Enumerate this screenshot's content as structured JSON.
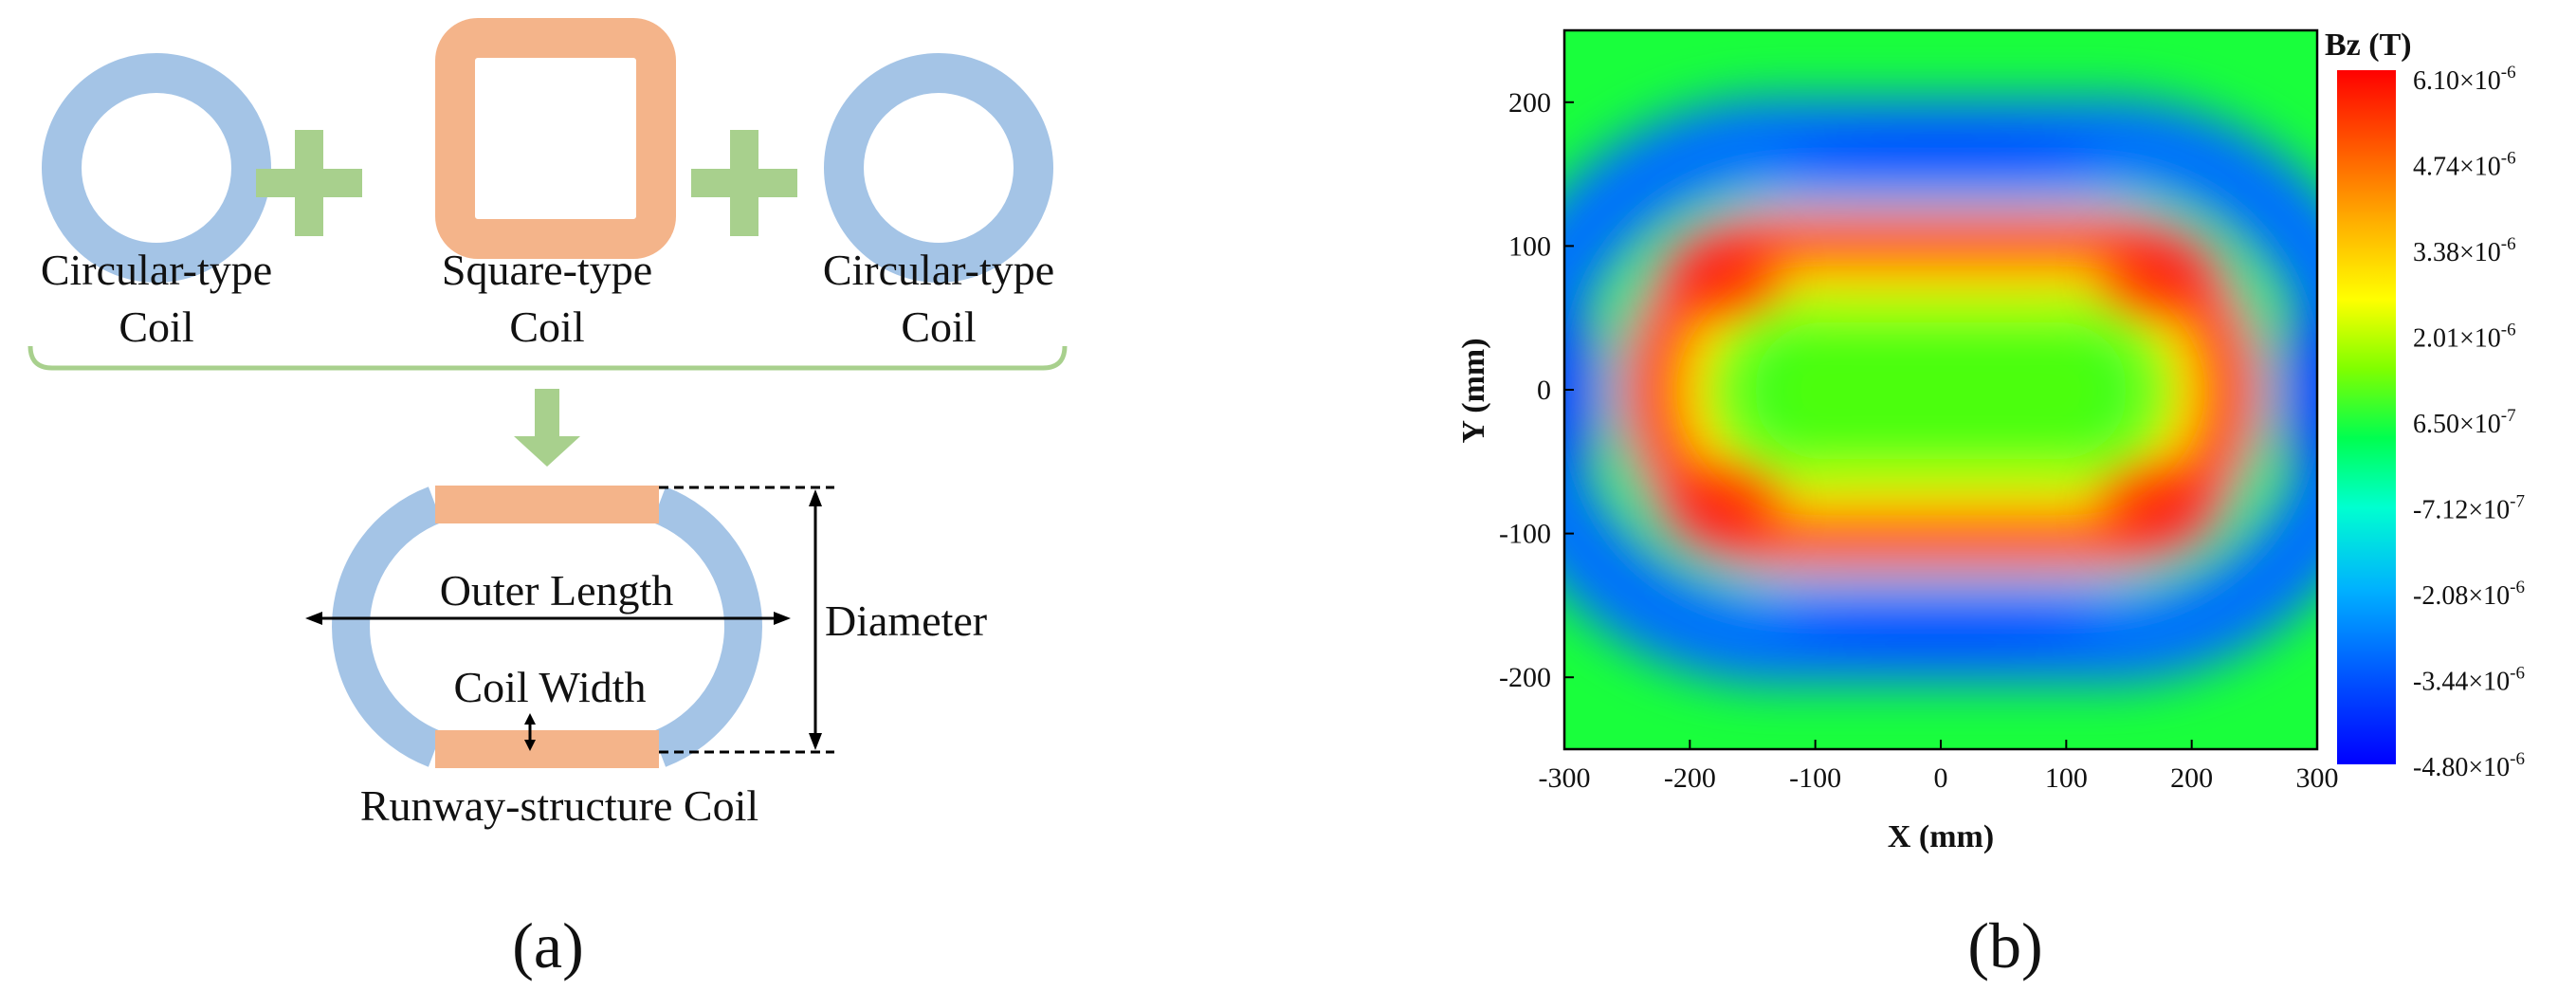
{
  "panel_a": {
    "caption": "(a)",
    "plus_symbol": "+",
    "coils": [
      {
        "line1": "Circular-type",
        "line2": "Coil",
        "color": "#A4C4E6"
      },
      {
        "line1": "Square-type",
        "line2": "Coil",
        "color": "#F4B48A"
      },
      {
        "line1": "Circular-type",
        "line2": "Coil",
        "color": "#A4C4E6"
      }
    ],
    "connector_color": "#A8D08D",
    "result_label": "Runway-structure Coil",
    "dimensions": {
      "outer_length": "Outer Length",
      "coil_width": "Coil Width",
      "diameter": "Diameter"
    }
  },
  "panel_b": {
    "caption": "(b)",
    "chart_data": {
      "type": "heatmap",
      "title": "",
      "xlabel": "X (mm)",
      "ylabel": "Y (mm)",
      "xlim": [
        -300,
        300
      ],
      "ylim": [
        -250,
        250
      ],
      "xticks": [
        -300,
        -200,
        -100,
        0,
        100,
        200,
        300
      ],
      "yticks": [
        -200,
        -100,
        0,
        100,
        200
      ],
      "colorbar": {
        "title": "Bz (T)",
        "min": -4.8e-06,
        "max": 6.1e-06,
        "tick_labels": [
          "6.10×10",
          "4.74×10",
          "3.38×10",
          "2.01×10",
          "6.50×10",
          "-7.12×10",
          "-2.08×10",
          "-3.44×10",
          "-4.80×10"
        ],
        "tick_exponents": [
          "-6",
          "-6",
          "-6",
          "-6",
          "-7",
          "-7",
          "-6",
          "-6",
          "-6"
        ],
        "colors": [
          "#0000ff",
          "#0060ff",
          "#00c0ff",
          "#00ffb0",
          "#00ff40",
          "#a0ff00",
          "#ffff00",
          "#ffb000",
          "#ff5000",
          "#ff0000"
        ]
      },
      "field_description": {
        "peak_value": 6.1e-06,
        "peak_region": "racetrack ring, outer half-length ~220 mm, half-height ~100 mm",
        "center_value": 6.5e-07,
        "minimum_value": -4.8e-06,
        "minimum_region": "band just outside the ring near y = ±160 mm and x = ±300 mm",
        "far_field_value": 6.5e-07
      }
    }
  }
}
